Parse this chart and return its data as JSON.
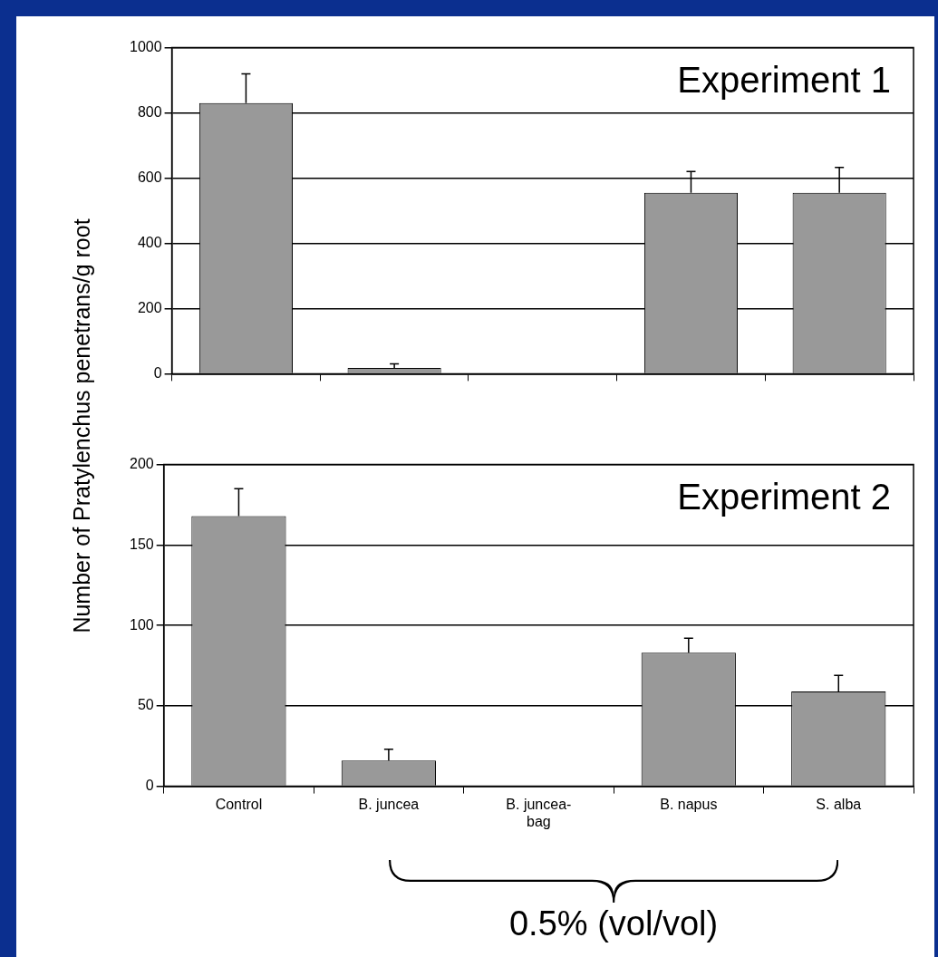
{
  "chart_data": [
    {
      "type": "bar",
      "ylabel": "Number of Pratylenchus penetrans/g root",
      "annotations": [
        "Experiment 1"
      ],
      "categories": [
        null,
        null,
        null,
        null,
        null
      ],
      "values": [
        830,
        18,
        null,
        555,
        555
      ],
      "errors": [
        [
          830,
          920
        ],
        [
          18,
          30
        ],
        null,
        [
          555,
          620
        ],
        [
          555,
          633
        ]
      ],
      "color": "#999999",
      "ylim": [
        0,
        1000
      ],
      "yticks": [
        0,
        200,
        400,
        600,
        800,
        1000
      ],
      "grid": "y",
      "tick_labels": "y"
    },
    {
      "type": "bar",
      "annotations": [
        "Experiment 2",
        "0.5% (vol/vol)"
      ],
      "categories": [
        "Control",
        "B. juncea",
        "B. juncea-bag",
        "B. napus",
        "S. alba"
      ],
      "values": [
        168,
        16,
        null,
        83,
        59
      ],
      "errors": [
        [
          168,
          185
        ],
        [
          16,
          23
        ],
        null,
        [
          83,
          92
        ],
        [
          59,
          69
        ]
      ],
      "color": "#999999",
      "ylim": [
        0,
        200
      ],
      "yticks": [
        0,
        50,
        100,
        150,
        200
      ],
      "grid": "y"
    }
  ]
}
